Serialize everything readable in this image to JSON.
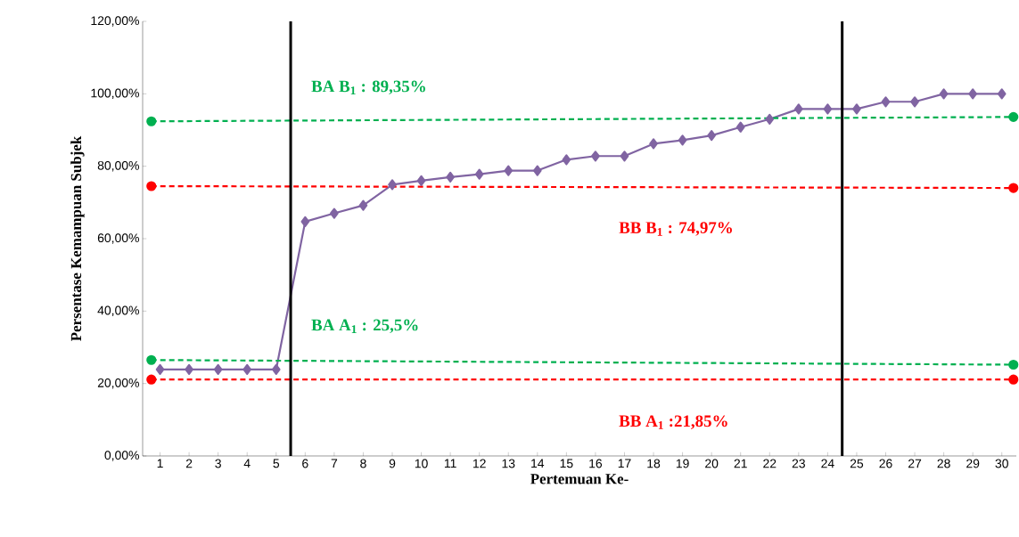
{
  "chart_data": {
    "type": "line",
    "xlabel": "Pertemuan Ke-",
    "ylabel": "Persentase Kemampuan Subjek",
    "xlim": [
      0.4,
      30.5
    ],
    "ylim": [
      0,
      120
    ],
    "xticks": [
      1,
      2,
      3,
      4,
      5,
      6,
      7,
      8,
      9,
      10,
      11,
      12,
      13,
      14,
      15,
      16,
      17,
      18,
      19,
      20,
      21,
      22,
      23,
      24,
      25,
      26,
      27,
      28,
      29,
      30
    ],
    "yticks": [
      {
        "value": 0,
        "label": "0,00%"
      },
      {
        "value": 20,
        "label": "20,00%"
      },
      {
        "value": 40,
        "label": "40,00%"
      },
      {
        "value": 60,
        "label": "60,00%"
      },
      {
        "value": 80,
        "label": "80,00%"
      },
      {
        "value": 100,
        "label": "100,00%"
      },
      {
        "value": 120,
        "label": "120,00%"
      }
    ],
    "grid": false,
    "legend": false,
    "series": [
      {
        "color": "#8064a2",
        "marker": "diamond",
        "line_style": "solid",
        "x": [
          1,
          2,
          3,
          4,
          5,
          6,
          7,
          8,
          9,
          10,
          11,
          12,
          13,
          14,
          15,
          16,
          17,
          18,
          19,
          20,
          21,
          22,
          23,
          24,
          25,
          26,
          27,
          28,
          29,
          30
        ],
        "values": [
          23.9,
          23.9,
          23.9,
          23.9,
          23.9,
          64.7,
          67,
          69.2,
          74.9,
          76,
          77,
          77.8,
          78.8,
          78.8,
          81.8,
          82.8,
          82.8,
          86.2,
          87.2,
          88.5,
          90.8,
          93,
          95.8,
          95.8,
          95.8,
          97.8,
          97.8,
          100,
          100,
          100
        ]
      },
      {
        "name": "BA B$_{1}$ : 89,35%",
        "color": "#00b050",
        "marker": "circle",
        "line_style": "dashed",
        "x": [
          0.7,
          30.4
        ],
        "values": [
          92.4,
          93.6
        ]
      },
      {
        "name": "BB B$_{1}$ : 74,97%",
        "color": "#ff0000",
        "marker": "circle",
        "line_style": "dashed",
        "x": [
          0.7,
          30.4
        ],
        "values": [
          74.5,
          74.0
        ]
      },
      {
        "name": "BA A$_{1}$ : 25,5%",
        "color": "#00b050",
        "marker": "circle",
        "line_style": "dashed",
        "x": [
          0.7,
          30.4
        ],
        "values": [
          26.5,
          25.2
        ]
      },
      {
        "name": "BB A$_{1}$ :21,85%",
        "color": "#ff0000",
        "marker": "circle",
        "line_style": "dashed",
        "x": [
          0.7,
          30.4
        ],
        "values": [
          21.1,
          21.1
        ]
      }
    ],
    "ref_lines": [
      {
        "axis": "x",
        "value": 5.5,
        "color": "#000000"
      },
      {
        "axis": "x",
        "value": 24.5,
        "color": "#000000"
      }
    ]
  }
}
